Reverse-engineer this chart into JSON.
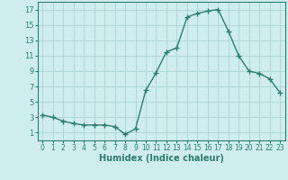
{
  "x": [
    0,
    1,
    2,
    3,
    4,
    5,
    6,
    7,
    8,
    9,
    10,
    11,
    12,
    13,
    14,
    15,
    16,
    17,
    18,
    19,
    20,
    21,
    22,
    23
  ],
  "y": [
    3.3,
    3.0,
    2.5,
    2.2,
    2.0,
    2.0,
    2.0,
    1.8,
    0.8,
    1.5,
    6.5,
    8.8,
    11.5,
    12.0,
    16.0,
    16.5,
    16.8,
    17.0,
    14.2,
    11.0,
    9.0,
    8.7,
    8.0,
    6.2
  ],
  "line_color": "#2e7d6e",
  "marker": "+",
  "markersize": 4,
  "linewidth": 1.0,
  "markeredgewidth": 1.0,
  "xlabel": "Humidex (Indice chaleur)",
  "xlabel_fontsize": 7,
  "xlim": [
    -0.5,
    23.5
  ],
  "ylim": [
    0,
    18
  ],
  "yticks": [
    1,
    3,
    5,
    7,
    9,
    11,
    13,
    15,
    17
  ],
  "xticks": [
    0,
    1,
    2,
    3,
    4,
    5,
    6,
    7,
    8,
    9,
    10,
    11,
    12,
    13,
    14,
    15,
    16,
    17,
    18,
    19,
    20,
    21,
    22,
    23
  ],
  "xtick_labels": [
    "0",
    "1",
    "2",
    "3",
    "4",
    "5",
    "6",
    "7",
    "8",
    "9",
    "10",
    "11",
    "12",
    "13",
    "14",
    "15",
    "16",
    "17",
    "18",
    "19",
    "20",
    "21",
    "22",
    "23"
  ],
  "background_color": "#ceeeed",
  "grid_color": "#aad4d3",
  "tick_color": "#2e7d6e",
  "label_color": "#2e7d6e",
  "tick_fontsize": 5.5,
  "ytick_fontsize": 6
}
